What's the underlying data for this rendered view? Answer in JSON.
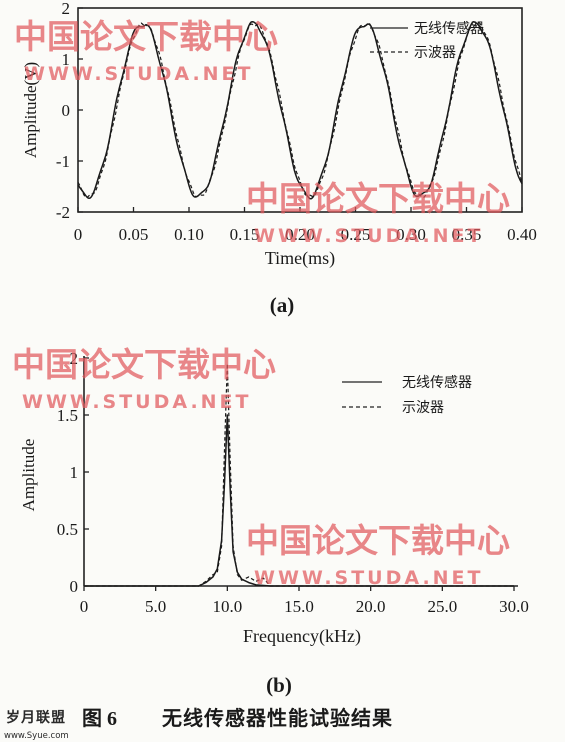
{
  "chart_data": [
    {
      "type": "line",
      "panel_label": "(a)",
      "xlabel": "Time(ms)",
      "ylabel": "Amplitude(V)",
      "xlim": [
        0,
        0.4
      ],
      "ylim": [
        -2,
        2
      ],
      "x_ticks": [
        "0",
        "0.05",
        "0.10",
        "0.15",
        "0.20",
        "0.25",
        "0.30",
        "0.35",
        "0.40"
      ],
      "y_ticks": [
        "-2",
        "-1",
        "0",
        "1",
        "2"
      ],
      "grid": false,
      "legend_position": "top-right",
      "signal": {
        "frequency_khz": 10,
        "amplitude_v": 1.7,
        "phase_deg": -120
      },
      "series": [
        {
          "name": "无线传感器",
          "style": "solid",
          "x": [
            0,
            0.01,
            0.02,
            0.03,
            0.04,
            0.05,
            0.06,
            0.07,
            0.08,
            0.09,
            0.1,
            0.11,
            0.12,
            0.13,
            0.14,
            0.15,
            0.16,
            0.17,
            0.18,
            0.19,
            0.2,
            0.21,
            0.22,
            0.23,
            0.24,
            0.25,
            0.26,
            0.27,
            0.28,
            0.29,
            0.3,
            0.31,
            0.32,
            0.33,
            0.34,
            0.35,
            0.36,
            0.37,
            0.38,
            0.39,
            0.4
          ],
          "values": [
            -1.47,
            -0.59,
            0.59,
            1.47,
            1.62,
            1.55,
            1.0,
            0.0,
            -1.0,
            -1.62,
            -1.55,
            -0.83,
            0.34,
            1.3,
            1.68,
            1.45,
            0.69,
            -0.45,
            -1.35,
            -1.7,
            -1.4,
            -0.55,
            0.6,
            1.5,
            1.7,
            1.5,
            0.5,
            -0.6,
            -1.5,
            -1.68,
            -1.45,
            -0.6,
            0.55,
            1.35,
            1.7,
            1.4,
            0.6,
            -0.5,
            -1.4,
            -1.7,
            -1.45
          ]
        },
        {
          "name": "示波器",
          "style": "dashed",
          "x": [
            0,
            0.01,
            0.02,
            0.03,
            0.04,
            0.05,
            0.06,
            0.07,
            0.08,
            0.09,
            0.1,
            0.11,
            0.12,
            0.13,
            0.14,
            0.15,
            0.16,
            0.17,
            0.18,
            0.19,
            0.2,
            0.21,
            0.22,
            0.23,
            0.24,
            0.25,
            0.26,
            0.27,
            0.28,
            0.29,
            0.3,
            0.31,
            0.32,
            0.33,
            0.34,
            0.35,
            0.36,
            0.37,
            0.38,
            0.39,
            0.4
          ],
          "values": [
            -1.5,
            -0.65,
            0.5,
            1.42,
            1.66,
            1.5,
            0.9,
            -0.1,
            -1.1,
            -1.65,
            -1.5,
            -0.75,
            0.4,
            1.35,
            1.7,
            1.4,
            0.6,
            -0.5,
            -1.4,
            -1.7,
            -1.35,
            -0.5,
            0.65,
            1.55,
            1.7,
            1.45,
            0.45,
            -0.65,
            -1.55,
            -1.7,
            -1.4,
            -0.55,
            0.6,
            1.4,
            1.7,
            1.35,
            0.55,
            -0.55,
            -1.45,
            -1.7,
            -1.4
          ]
        }
      ]
    },
    {
      "type": "line",
      "panel_label": "(b)",
      "xlabel": "Frequency(kHz)",
      "ylabel": "Amplitude",
      "xlim": [
        0,
        30
      ],
      "ylim": [
        0,
        2
      ],
      "x_ticks": [
        "0",
        "5.0",
        "10.0",
        "15.0",
        "20.0",
        "25.0",
        "30.0"
      ],
      "y_ticks": [
        "0",
        "0.5",
        "1",
        "1.5",
        "2"
      ],
      "grid": false,
      "legend_position": "top-right",
      "series": [
        {
          "name": "无线传感器",
          "style": "solid",
          "x": [
            0,
            8.0,
            8.5,
            9.0,
            9.3,
            9.6,
            9.8,
            10.0,
            10.2,
            10.4,
            10.7,
            11.0,
            11.5,
            12.0,
            13.0,
            30.0
          ],
          "values": [
            0,
            0,
            0.03,
            0.08,
            0.15,
            0.4,
            0.9,
            1.5,
            0.85,
            0.3,
            0.12,
            0.06,
            0.03,
            0.01,
            0,
            0
          ]
        },
        {
          "name": "示波器",
          "style": "dashed",
          "x": [
            0,
            8.0,
            8.5,
            9.0,
            9.3,
            9.6,
            9.8,
            10.0,
            10.2,
            10.4,
            10.7,
            11.0,
            11.5,
            12.0,
            12.5,
            13.0,
            30.0
          ],
          "values": [
            0,
            0,
            0.04,
            0.1,
            0.12,
            0.35,
            1.2,
            1.95,
            1.1,
            0.35,
            0.1,
            0.05,
            0.08,
            0.04,
            0.07,
            0,
            0
          ]
        }
      ]
    }
  ],
  "legend": {
    "a": {
      "item1": "无线传感器",
      "item2": "示波器"
    },
    "b": {
      "item1": "无线传感器",
      "item2": "示波器"
    }
  },
  "caption": {
    "figure_no": "图 6",
    "text": "无线传感器性能试验结果"
  },
  "watermarks": {
    "cn": "中国论文下载中心",
    "en": "WWW.STUDA.NET"
  },
  "logo": {
    "text": "岁月联盟",
    "url": "www.Syue.com"
  }
}
